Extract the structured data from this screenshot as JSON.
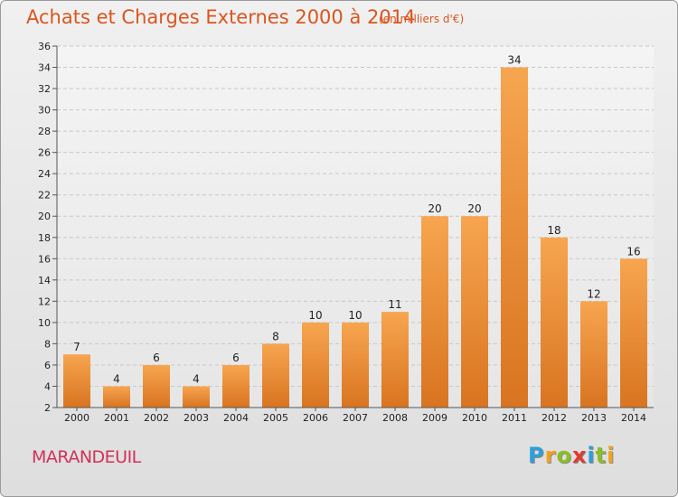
{
  "title": "Achats et Charges Externes 2000 à 2014",
  "subtitle": "(en milliers d'€)",
  "location": "MARANDEUIL",
  "logo": {
    "letters": [
      {
        "char": "P",
        "color": "#2e9fd8"
      },
      {
        "char": "r",
        "color": "#f2a21b"
      },
      {
        "char": "o",
        "color": "#8bbf26"
      },
      {
        "char": "x",
        "color": "#e2382d"
      },
      {
        "char": "i",
        "color": "#2e9fd8"
      },
      {
        "char": "t",
        "color": "#8bbf26"
      },
      {
        "char": "i",
        "color": "#f2a21b"
      }
    ]
  },
  "chart_data": {
    "type": "bar",
    "categories": [
      "2000",
      "2001",
      "2002",
      "2003",
      "2004",
      "2005",
      "2006",
      "2007",
      "2008",
      "2009",
      "2010",
      "2011",
      "2012",
      "2013",
      "2014"
    ],
    "values": [
      7,
      4,
      6,
      4,
      6,
      8,
      10,
      10,
      11,
      20,
      20,
      34,
      18,
      12,
      16
    ],
    "title": "Achats et Charges Externes 2000 à 2014",
    "ylabel": "(en milliers d'€)",
    "ylim": [
      2,
      36
    ],
    "yticks": [
      2,
      4,
      6,
      8,
      10,
      12,
      14,
      16,
      18,
      20,
      22,
      24,
      26,
      28,
      30,
      32,
      34,
      36
    ],
    "grid": "horizontal-dashed",
    "bar_color_top": "#f7a550",
    "bar_color_bottom": "#d97420"
  }
}
